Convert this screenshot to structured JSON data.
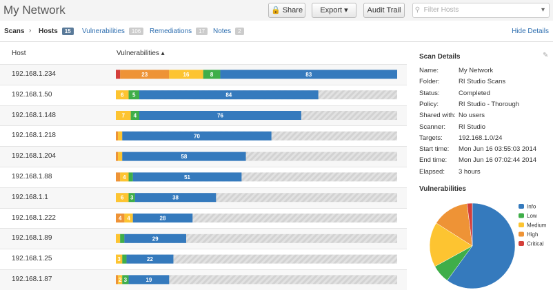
{
  "header": {
    "title": "My Network",
    "buttons": [
      "Share",
      "Export",
      "Audit Trail"
    ],
    "filter_placeholder": "Filter Hosts"
  },
  "tabs": {
    "crumb": "Scans",
    "items": [
      {
        "label": "Hosts",
        "count": 15
      },
      {
        "label": "Vulnerabilities",
        "count": 106
      },
      {
        "label": "Remediations",
        "count": 17
      },
      {
        "label": "Notes",
        "count": 2
      }
    ],
    "hide": "Hide Details"
  },
  "table": {
    "columns": [
      "Host",
      "Vulnerabilities"
    ],
    "severities": [
      "Info",
      "Low",
      "Medium",
      "High",
      "Critical"
    ],
    "colors": [
      "#357abd",
      "#3fae49",
      "#fdc431",
      "#ee9336",
      "#d43f3a"
    ],
    "rows": [
      {
        "host": "192.168.1.234",
        "values": [
          83,
          8,
          16,
          23,
          2
        ],
        "show_label": [
          true,
          true,
          true,
          true,
          false
        ]
      },
      {
        "host": "192.168.1.50",
        "values": [
          84,
          5,
          6,
          0,
          0
        ],
        "show_label": [
          true,
          true,
          true,
          false,
          false
        ]
      },
      {
        "host": "192.168.1.148",
        "values": [
          76,
          4,
          7,
          0,
          0
        ],
        "show_label": [
          true,
          true,
          true,
          false,
          false
        ]
      },
      {
        "host": "192.168.1.218",
        "values": [
          70,
          0,
          2,
          1,
          0
        ],
        "show_label": [
          true,
          false,
          false,
          false,
          false
        ]
      },
      {
        "host": "192.168.1.204",
        "values": [
          58,
          0,
          2,
          1,
          0
        ],
        "show_label": [
          true,
          false,
          false,
          false,
          false
        ]
      },
      {
        "host": "192.168.1.88",
        "values": [
          51,
          2,
          4,
          2,
          0
        ],
        "show_label": [
          true,
          false,
          true,
          false,
          false
        ]
      },
      {
        "host": "192.168.1.1",
        "values": [
          38,
          3,
          6,
          0,
          0
        ],
        "show_label": [
          true,
          true,
          true,
          false,
          false
        ]
      },
      {
        "host": "192.168.1.222",
        "values": [
          28,
          0,
          4,
          4,
          0
        ],
        "show_label": [
          true,
          false,
          true,
          true,
          false
        ]
      },
      {
        "host": "192.168.1.89",
        "values": [
          29,
          2,
          2,
          0,
          0
        ],
        "show_label": [
          true,
          false,
          false,
          false,
          false
        ]
      },
      {
        "host": "192.168.1.25",
        "values": [
          22,
          2,
          3,
          0,
          0
        ],
        "show_label": [
          true,
          false,
          true,
          false,
          false
        ]
      },
      {
        "host": "192.168.1.87",
        "values": [
          19,
          3,
          2,
          1,
          0
        ],
        "show_label": [
          true,
          true,
          true,
          false,
          false
        ]
      }
    ]
  },
  "details": {
    "title": "Scan Details",
    "items": [
      {
        "key": "Name:",
        "value": "My Network"
      },
      {
        "key": "Folder:",
        "value": "RI Studio Scans"
      },
      {
        "key": "Status:",
        "value": "Completed"
      },
      {
        "key": "Policy:",
        "value": "RI Studio - Thorough"
      },
      {
        "key": "Shared with:",
        "value": "No users"
      },
      {
        "key": "Scanner:",
        "value": "RI Studio"
      },
      {
        "key": "Targets:",
        "value": "192.168.1.0/24"
      },
      {
        "key": "Start time:",
        "value": "Mon Jun 16 03:55:03 2014"
      },
      {
        "key": "End time:",
        "value": "Mon Jun 16 07:02:44 2014"
      },
      {
        "key": "Elapsed:",
        "value": "3 hours"
      }
    ]
  },
  "chart_data": {
    "type": "pie",
    "title": "Vulnerabilities",
    "categories": [
      "Info",
      "Low",
      "Medium",
      "High",
      "Critical"
    ],
    "values": [
      60,
      7,
      17,
      14,
      2
    ],
    "colors": [
      "#357abd",
      "#3fae49",
      "#fdc431",
      "#ee9336",
      "#d43f3a"
    ]
  }
}
